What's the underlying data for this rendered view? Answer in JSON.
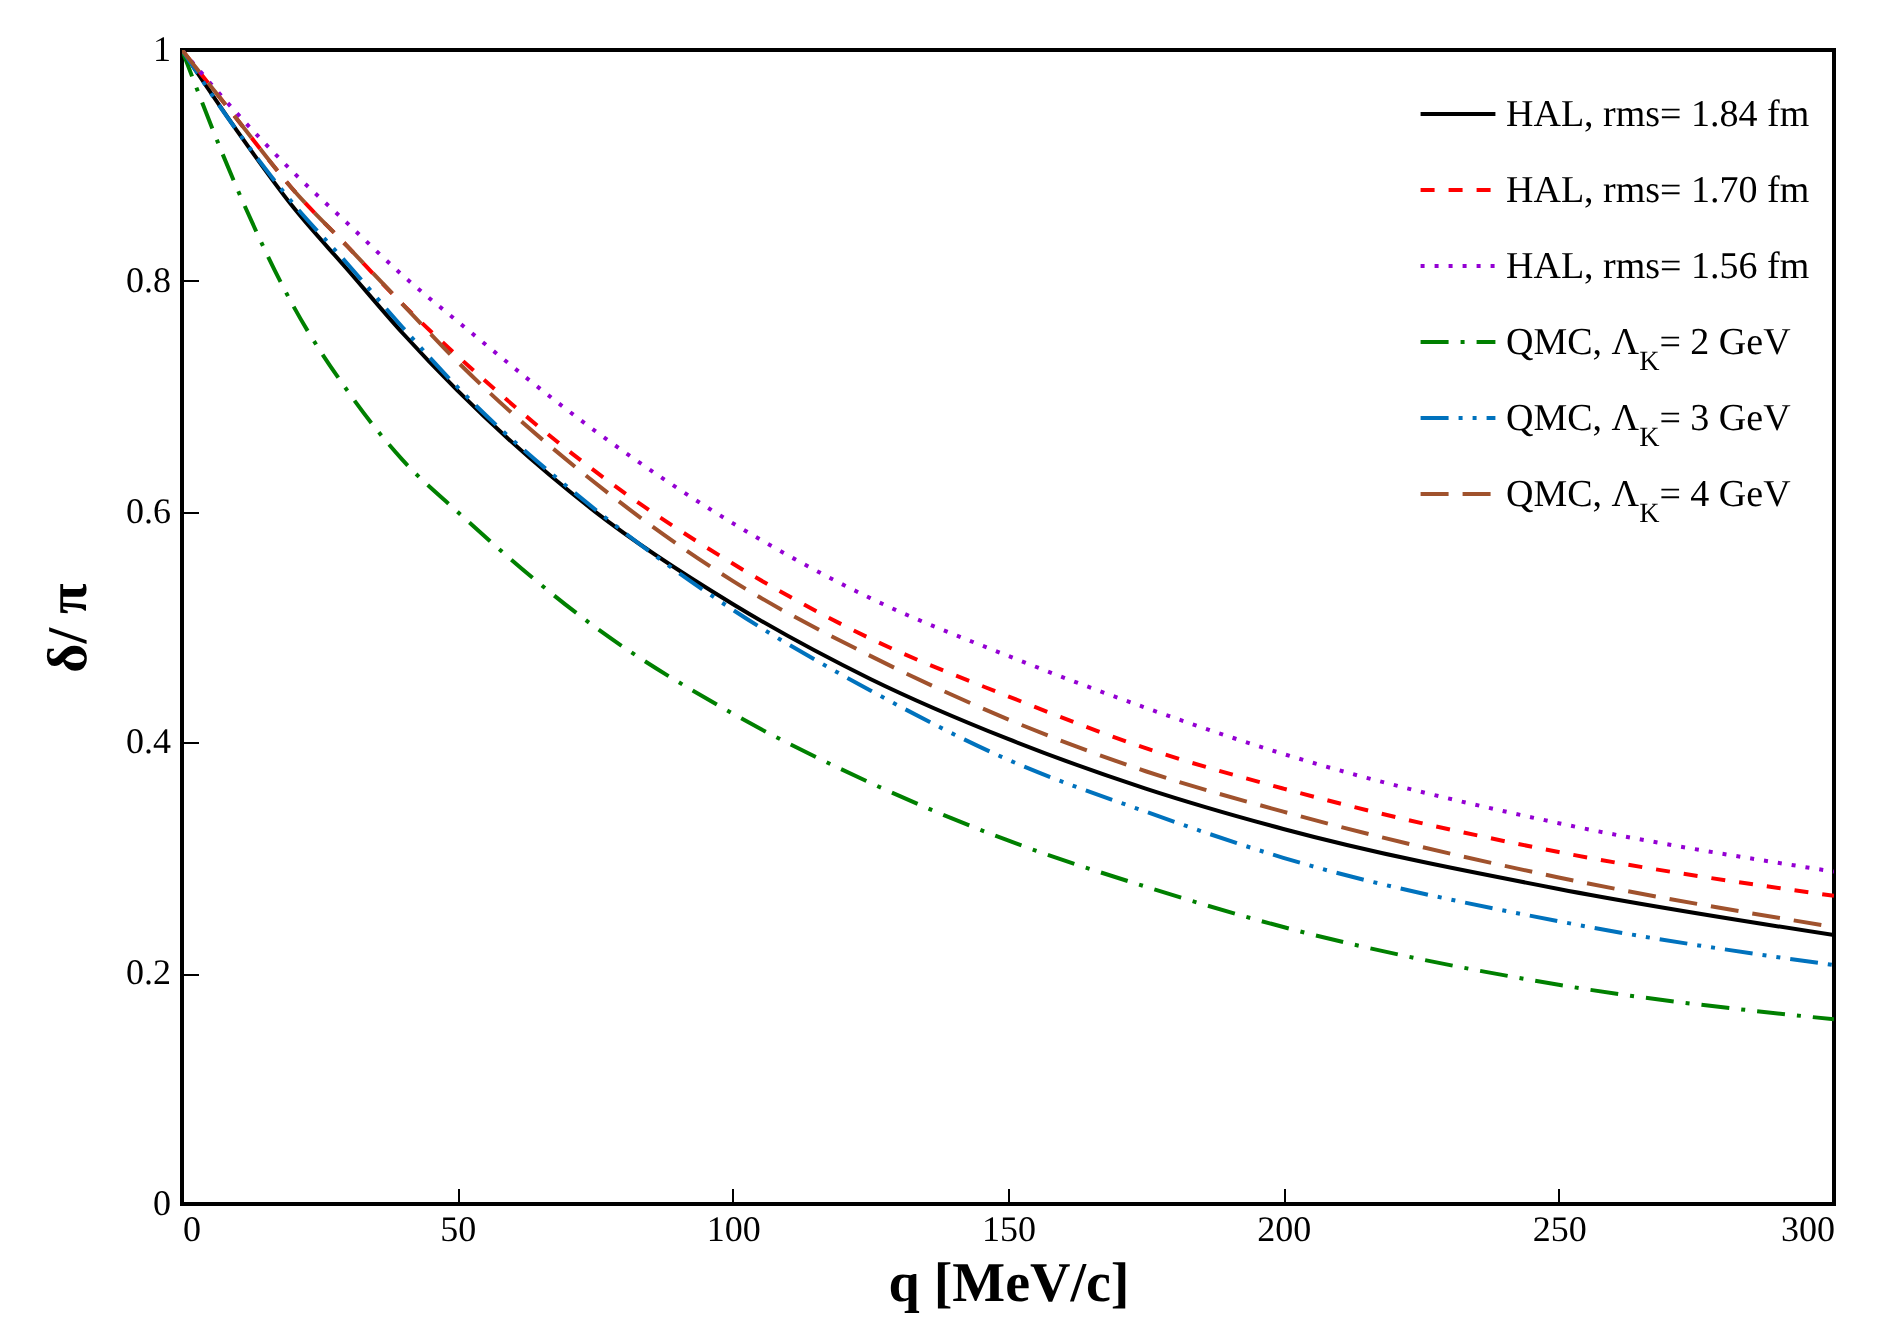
{
  "chart_data": {
    "type": "line",
    "xlabel": "q [MeV/c]",
    "ylabel": "δ/ π",
    "x": [
      0,
      10,
      20,
      30,
      40,
      50,
      75,
      100,
      125,
      150,
      175,
      200,
      250,
      300
    ],
    "xlim": [
      0,
      300
    ],
    "xticks": [
      0,
      50,
      100,
      150,
      200,
      250,
      300
    ],
    "ylim": [
      0,
      1
    ],
    "yticks": [
      0,
      0.2,
      0.4,
      0.6,
      0.8,
      1
    ],
    "grid": false,
    "legend": "top right",
    "marker": "none",
    "series": [
      {
        "name": "HAL, rms= 1.84 fm",
        "color": "#000000",
        "line_style": "solid",
        "values": [
          1,
          0.93,
          0.865,
          0.81,
          0.755,
          0.705,
          0.6,
          0.52,
          0.455,
          0.403,
          0.36,
          0.325,
          0.273,
          0.233
        ]
      },
      {
        "name": "HAL, rms= 1.70 fm",
        "color": "#ff0000",
        "line_style": "dashed",
        "values": [
          1,
          0.94,
          0.88,
          0.83,
          0.78,
          0.735,
          0.635,
          0.555,
          0.49,
          0.44,
          0.395,
          0.36,
          0.305,
          0.267
        ]
      },
      {
        "name": "HAL, rms= 1.56 fm",
        "color": "#9400d3",
        "line_style": "dotted",
        "values": [
          1,
          0.945,
          0.895,
          0.85,
          0.805,
          0.765,
          0.67,
          0.59,
          0.525,
          0.475,
          0.43,
          0.39,
          0.33,
          0.288
        ]
      },
      {
        "name": "QMC, Λ$_{K}$= 2 GeV",
        "color": "#008000",
        "line_style": "dash-dot",
        "values": [
          1,
          0.88,
          0.78,
          0.705,
          0.645,
          0.6,
          0.5,
          0.425,
          0.365,
          0.315,
          0.275,
          0.24,
          0.19,
          0.16
        ]
      },
      {
        "name": "QMC, Λ$_{K}$= 3 GeV",
        "color": "#0072bd",
        "line_style": "dash-dot-dot",
        "values": [
          1,
          0.93,
          0.868,
          0.815,
          0.76,
          0.708,
          0.602,
          0.515,
          0.445,
          0.385,
          0.34,
          0.3,
          0.245,
          0.207
        ]
      },
      {
        "name": "QMC, Λ$_{K}$= 4 GeV",
        "color": "#a0522d",
        "line_style": "long-dashed",
        "values": [
          1,
          0.94,
          0.88,
          0.83,
          0.78,
          0.73,
          0.625,
          0.54,
          0.475,
          0.42,
          0.375,
          0.34,
          0.283,
          0.24
        ]
      }
    ]
  }
}
